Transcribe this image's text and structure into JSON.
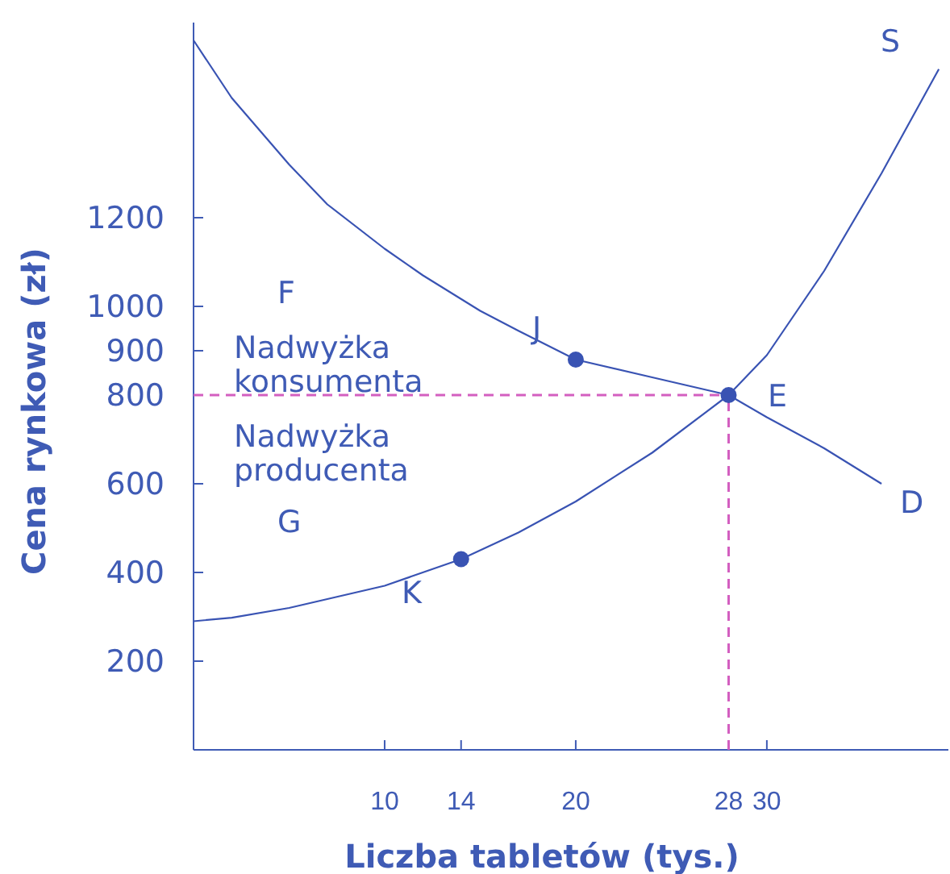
{
  "chart_data": {
    "type": "line",
    "xlabel": "Liczba tabletów (tys.)",
    "ylabel": "Cena rynkowa (zł)",
    "xlim": [
      0,
      39.5
    ],
    "ylim": [
      0,
      1640
    ],
    "xticks": [
      10,
      14,
      20,
      28,
      30
    ],
    "yticks": [
      200,
      400,
      600,
      800,
      900,
      1000,
      1200
    ],
    "grid": false,
    "marker": "none",
    "series": [
      {
        "color": "#3953b3",
        "x": [
          0,
          2,
          5,
          7,
          10,
          14,
          17,
          20,
          24,
          28,
          30,
          33,
          36,
          39
        ],
        "values": [
          290,
          298,
          320,
          340,
          370,
          430,
          490,
          560,
          670,
          800,
          890,
          1080,
          1300,
          1535
        ]
      },
      {
        "color": "#3953b3",
        "x": [
          0,
          2,
          5,
          7,
          10,
          12,
          15,
          17,
          20,
          24,
          28,
          30,
          33,
          36
        ],
        "values": [
          1600,
          1470,
          1320,
          1230,
          1130,
          1070,
          990,
          945,
          880,
          840,
          800,
          750,
          680,
          600
        ]
      },
      {
        "color": "#d35fc0",
        "line_style": "dashed",
        "x": [
          0,
          28
        ],
        "values": [
          800,
          800
        ]
      },
      {
        "color": "#d35fc0",
        "line_style": "dashed",
        "x": [
          28,
          28
        ],
        "values": [
          0,
          800
        ]
      },
      {
        "type": "scatter",
        "marker": "circle",
        "color": "#3953b3",
        "x": [
          20,
          14,
          28
        ],
        "values": [
          880,
          430,
          800
        ]
      }
    ],
    "annotations": [
      "S",
      "D",
      "E",
      "J",
      "K",
      "F",
      "G",
      "Nadwyżka konsumenta",
      "Nadwyżka producenta"
    ]
  }
}
